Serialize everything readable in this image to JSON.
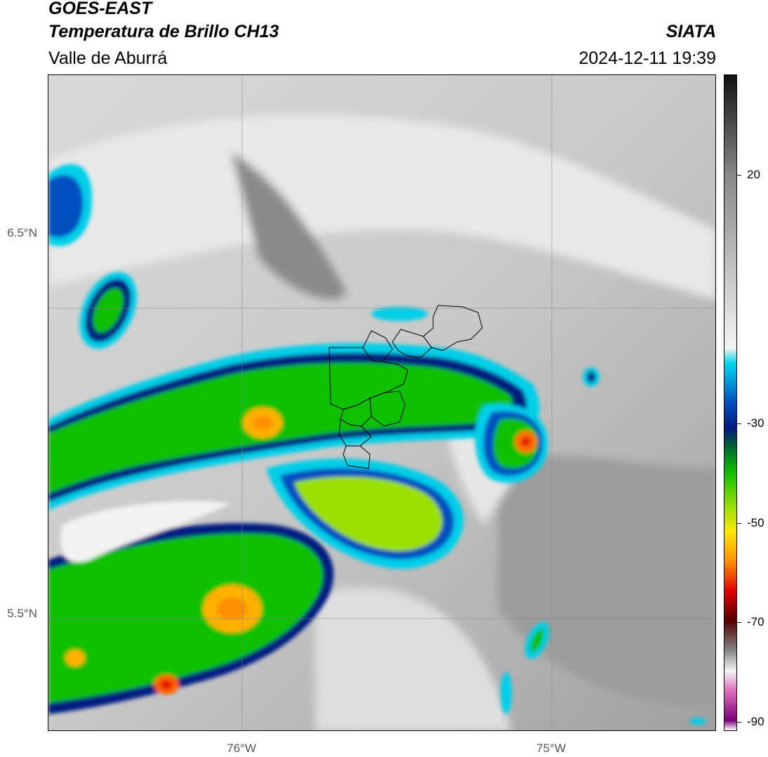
{
  "header": {
    "title_line1": "GOES-EAST",
    "title_line2": "Temperatura de Brillo CH13",
    "subtitle": "Valle de Aburrá",
    "organization": "SIATA",
    "timestamp": "2024-12-11 19:39"
  },
  "map": {
    "lat_labels": [
      "6.5°N",
      "5.5°N"
    ],
    "lon_labels": [
      "76°W",
      "75°W"
    ],
    "lat_range_deg_n": [
      5.13,
      7.25
    ],
    "lon_range_deg_w": [
      76.62,
      74.47
    ],
    "gridlines": true,
    "boundary_overlay": "municipal boundaries of Valle de Aburrá"
  },
  "colorbar": {
    "ticks": [
      "20",
      "-30",
      "-50",
      "-70",
      "-90"
    ],
    "tick_values": [
      20,
      -30,
      -50,
      -70,
      -90
    ],
    "range": [
      -92,
      40
    ],
    "colors": {
      "warm_top": "#111111",
      "warm_gray": "#888888",
      "light": "#f4f4f4",
      "cyan": "#00d8f0",
      "blue": "#0050c0",
      "navy": "#001a80",
      "dark_green": "#006830",
      "green": "#10c000",
      "lime": "#9be000",
      "yellow": "#ffe600",
      "orange": "#ff9000",
      "red": "#e00000",
      "dark_red": "#550000",
      "pink": "#e070c0",
      "purple": "#7a007a"
    }
  }
}
